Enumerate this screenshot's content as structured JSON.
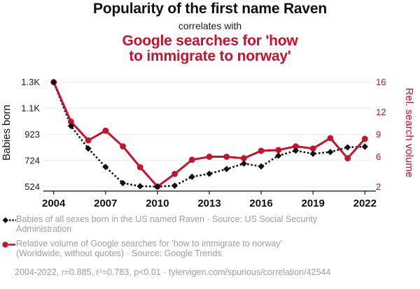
{
  "header": {
    "title": "Popularity of the first name Raven",
    "subtitle": "correlates with",
    "red_line1": "Google searches for 'how",
    "red_line2": "to immigrate to norway'"
  },
  "colors": {
    "red": "#c4122f",
    "black": "#121212",
    "gray_text": "#9e9e9e",
    "gridline": "#eaeaea",
    "axis": "#222222"
  },
  "chart_data": {
    "type": "line",
    "x": [
      2004,
      2005,
      2006,
      2007,
      2008,
      2009,
      2010,
      2011,
      2012,
      2013,
      2014,
      2015,
      2016,
      2017,
      2018,
      2019,
      2020,
      2021,
      2022
    ],
    "x_tick_labels": [
      "2004",
      "2007",
      "2010",
      "2013",
      "2016",
      "2019",
      "2022"
    ],
    "left_axis": {
      "label": "Babies born",
      "range": [
        524,
        1322
      ],
      "ticks": [
        {
          "value": 524,
          "label": "524"
        },
        {
          "value": 724,
          "label": "724"
        },
        {
          "value": 923,
          "label": "923"
        },
        {
          "value": 1123,
          "label": "1.1K"
        },
        {
          "value": 1322,
          "label": "1.3K"
        }
      ]
    },
    "right_axis": {
      "label": "Rel. search volume",
      "range": [
        2,
        16
      ],
      "ticks": [
        {
          "value": 2,
          "label": "2"
        },
        {
          "value": 6,
          "label": "6"
        },
        {
          "value": 9,
          "label": "9"
        },
        {
          "value": 12,
          "label": "12"
        },
        {
          "value": 16,
          "label": "16"
        }
      ]
    },
    "grid": "horizontal",
    "legend_position": "bottom",
    "series": [
      {
        "name": "Babies of all sexes born in the US named Raven",
        "source": "US Social Security Administration",
        "axis": "left",
        "style": "dashed",
        "marker": "diamond",
        "color": "#121212",
        "values": [
          1322,
          987,
          815,
          674,
          551,
          527,
          524,
          531,
          599,
          622,
          658,
          700,
          678,
          760,
          799,
          775,
          788,
          824,
          829
        ]
      },
      {
        "name": "Relative volume of Google searches for 'how to immigrate to norway' (Worldwide, without quotes)",
        "source": "Google Trends",
        "axis": "right",
        "style": "solid",
        "marker": "circle",
        "color": "#c4122f",
        "values": [
          16.0,
          10.7,
          8.2,
          9.5,
          7.4,
          4.6,
          2.0,
          3.7,
          5.6,
          6.0,
          6.0,
          5.8,
          6.8,
          6.9,
          7.4,
          7.1,
          8.5,
          5.8,
          8.4
        ]
      }
    ]
  },
  "legend": {
    "items": [
      {
        "marker": "black-diamond-dashed",
        "lines": [
          "Babies of all sexes born in the US named Raven · Source: US Social Security",
          "Administration"
        ]
      },
      {
        "marker": "red-circle-solid",
        "lines": [
          "Relative volume of Google searches for 'how to immigrate to norway'",
          "(Worldwide, without quotes) · Source: Google Trends"
        ]
      }
    ]
  },
  "footer": {
    "text": "2004-2022, r=0.885, r²=0.783, p<0.01 · tylervigen.com/spurious/correlation/42544"
  }
}
